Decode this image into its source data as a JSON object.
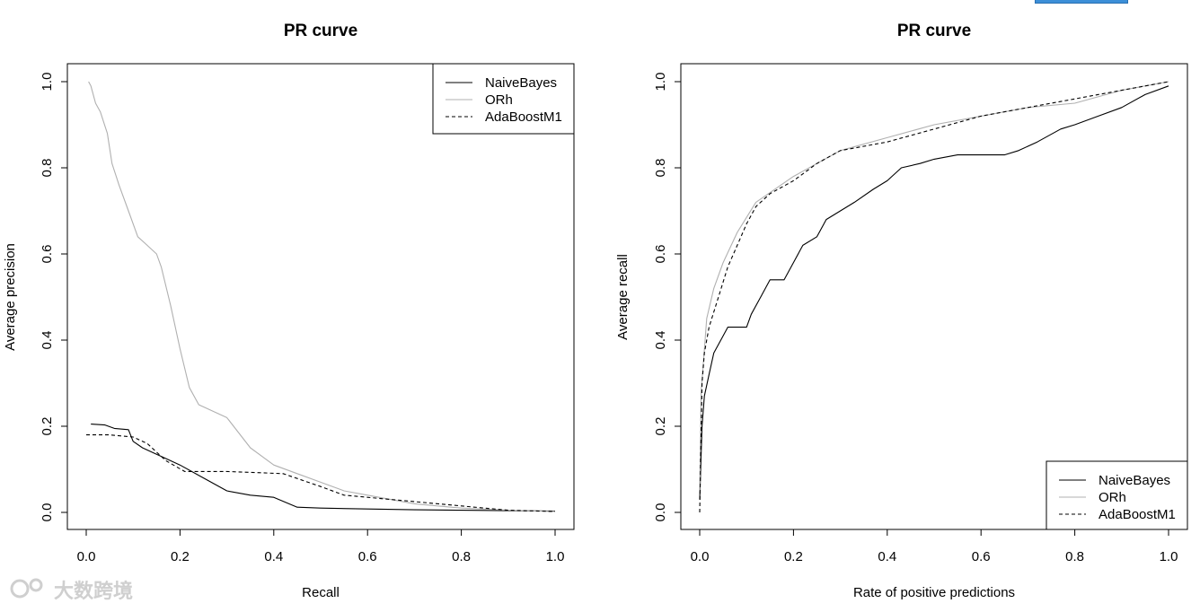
{
  "watermark": "大数跨境",
  "chart_data": [
    {
      "type": "line",
      "title": "PR curve",
      "xlabel": "Recall",
      "ylabel": "Average precision",
      "xlim": [
        0,
        1
      ],
      "ylim": [
        0,
        1
      ],
      "xticks": [
        "0.0",
        "0.2",
        "0.4",
        "0.6",
        "0.8",
        "1.0"
      ],
      "yticks": [
        "0.0",
        "0.2",
        "0.4",
        "0.6",
        "0.8",
        "1.0"
      ],
      "legend_position": "top-right",
      "series": [
        {
          "name": "NaiveBayes",
          "color": "#000000",
          "dash": "solid",
          "x": [
            0.01,
            0.04,
            0.06,
            0.09,
            0.1,
            0.12,
            0.15,
            0.2,
            0.25,
            0.3,
            0.35,
            0.4,
            0.45,
            0.5,
            0.6,
            0.7,
            0.8,
            0.9,
            1.0
          ],
          "y": [
            0.205,
            0.203,
            0.195,
            0.192,
            0.165,
            0.15,
            0.135,
            0.11,
            0.08,
            0.05,
            0.04,
            0.035,
            0.012,
            0.01,
            0.008,
            0.006,
            0.005,
            0.004,
            0.003
          ]
        },
        {
          "name": "ORh",
          "color": "#b0b0b0",
          "dash": "solid",
          "x": [
            0.005,
            0.01,
            0.02,
            0.03,
            0.045,
            0.055,
            0.07,
            0.09,
            0.11,
            0.13,
            0.15,
            0.16,
            0.18,
            0.2,
            0.22,
            0.24,
            0.3,
            0.35,
            0.4,
            0.45,
            0.5,
            0.55,
            0.6,
            0.7,
            0.8,
            0.9,
            1.0
          ],
          "y": [
            1.0,
            0.99,
            0.95,
            0.93,
            0.88,
            0.81,
            0.76,
            0.7,
            0.64,
            0.62,
            0.6,
            0.57,
            0.48,
            0.38,
            0.29,
            0.25,
            0.22,
            0.15,
            0.11,
            0.09,
            0.07,
            0.05,
            0.04,
            0.02,
            0.01,
            0.005,
            0.002
          ]
        },
        {
          "name": "AdaBoostM1",
          "color": "#000000",
          "dash": "dashed",
          "x": [
            0.0,
            0.05,
            0.1,
            0.13,
            0.17,
            0.21,
            0.3,
            0.42,
            0.5,
            0.55,
            0.6,
            0.65,
            0.7,
            0.8,
            0.9,
            1.0
          ],
          "y": [
            0.18,
            0.18,
            0.175,
            0.16,
            0.12,
            0.095,
            0.095,
            0.09,
            0.06,
            0.04,
            0.035,
            0.03,
            0.025,
            0.015,
            0.005,
            0.002
          ]
        }
      ]
    },
    {
      "type": "line",
      "title": "PR curve",
      "xlabel": "Rate of positive predictions",
      "ylabel": "Average recall",
      "xlim": [
        0,
        1
      ],
      "ylim": [
        0,
        1
      ],
      "xticks": [
        "0.0",
        "0.2",
        "0.4",
        "0.6",
        "0.8",
        "1.0"
      ],
      "yticks": [
        "0.0",
        "0.2",
        "0.4",
        "0.6",
        "0.8",
        "1.0"
      ],
      "legend_position": "bottom-right",
      "series": [
        {
          "name": "NaiveBayes",
          "color": "#000000",
          "dash": "solid",
          "x": [
            0.0,
            0.005,
            0.01,
            0.02,
            0.03,
            0.05,
            0.06,
            0.08,
            0.1,
            0.11,
            0.13,
            0.15,
            0.18,
            0.2,
            0.22,
            0.25,
            0.27,
            0.3,
            0.33,
            0.37,
            0.4,
            0.43,
            0.47,
            0.5,
            0.55,
            0.6,
            0.65,
            0.68,
            0.72,
            0.77,
            0.8,
            0.85,
            0.9,
            0.95,
            1.0
          ],
          "y": [
            0.03,
            0.2,
            0.27,
            0.32,
            0.37,
            0.41,
            0.43,
            0.43,
            0.43,
            0.46,
            0.5,
            0.54,
            0.54,
            0.58,
            0.62,
            0.64,
            0.68,
            0.7,
            0.72,
            0.75,
            0.77,
            0.8,
            0.81,
            0.82,
            0.83,
            0.83,
            0.83,
            0.84,
            0.86,
            0.89,
            0.9,
            0.92,
            0.94,
            0.97,
            0.99
          ]
        },
        {
          "name": "ORh",
          "color": "#b0b0b0",
          "dash": "solid",
          "x": [
            0.0,
            0.003,
            0.008,
            0.015,
            0.03,
            0.05,
            0.08,
            0.12,
            0.2,
            0.3,
            0.4,
            0.5,
            0.6,
            0.7,
            0.8,
            0.9,
            1.0
          ],
          "y": [
            0.05,
            0.28,
            0.35,
            0.45,
            0.52,
            0.58,
            0.65,
            0.72,
            0.78,
            0.84,
            0.87,
            0.9,
            0.92,
            0.94,
            0.95,
            0.98,
            1.0
          ]
        },
        {
          "name": "AdaBoostM1",
          "color": "#000000",
          "dash": "dashed",
          "x": [
            0.0,
            0.005,
            0.01,
            0.02,
            0.04,
            0.06,
            0.08,
            0.1,
            0.12,
            0.15,
            0.2,
            0.25,
            0.3,
            0.4,
            0.5,
            0.6,
            0.7,
            0.8,
            0.9,
            1.0
          ],
          "y": [
            0.0,
            0.3,
            0.37,
            0.43,
            0.5,
            0.57,
            0.62,
            0.67,
            0.71,
            0.74,
            0.77,
            0.81,
            0.84,
            0.86,
            0.89,
            0.92,
            0.94,
            0.96,
            0.98,
            1.0
          ]
        }
      ]
    }
  ]
}
